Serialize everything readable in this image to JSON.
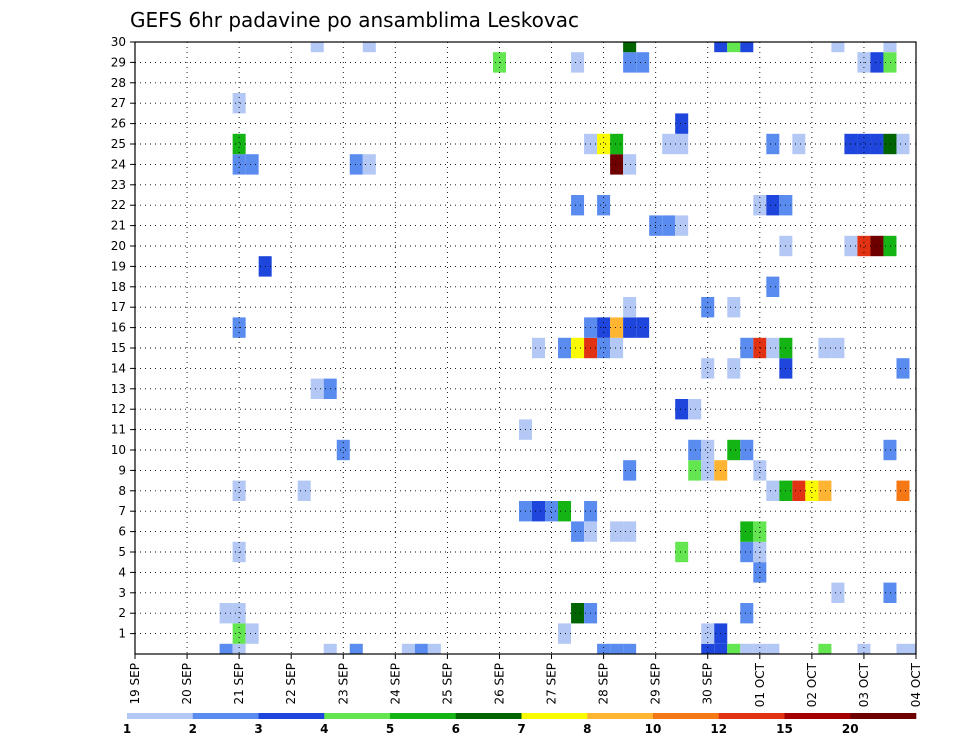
{
  "chart_data": {
    "type": "heatmap",
    "title": "GEFS 6hr padavine po ansamblima Leskovac",
    "xlabel": "",
    "ylabel": "",
    "x_ticks": [
      "19 SEP",
      "20 SEP",
      "21 SEP",
      "22 SEP",
      "23 SEP",
      "24 SEP",
      "25 SEP",
      "26 SEP",
      "27 SEP",
      "28 SEP",
      "29 SEP",
      "30 SEP",
      "01 OCT",
      "02 OCT",
      "03 OCT",
      "04 OCT"
    ],
    "x_range_steps": [
      0,
      60
    ],
    "y_ticks": [
      1,
      2,
      3,
      4,
      5,
      6,
      7,
      8,
      9,
      10,
      11,
      12,
      13,
      14,
      15,
      16,
      17,
      18,
      19,
      20,
      21,
      22,
      23,
      24,
      25,
      26,
      27,
      28,
      29,
      30
    ],
    "y_range": [
      0,
      30
    ],
    "grid": "dotted",
    "colorbar": {
      "colors": [
        "#b4c8f5",
        "#5a8cf0",
        "#1e46dc",
        "#64e650",
        "#14b414",
        "#006400",
        "#fafa00",
        "#ffb432",
        "#f57814",
        "#e13214",
        "#a50000",
        "#6e0000"
      ],
      "labels": [
        "1",
        "2",
        "3",
        "4",
        "5",
        "6",
        "7",
        "8",
        "10",
        "12",
        "15",
        "20"
      ]
    },
    "cells": [
      [
        7,
        0,
        1
      ],
      [
        8,
        0,
        0
      ],
      [
        15,
        0,
        0
      ],
      [
        17,
        0,
        1
      ],
      [
        21,
        0,
        0
      ],
      [
        22,
        0,
        1
      ],
      [
        23,
        0,
        0
      ],
      [
        36,
        0,
        1
      ],
      [
        37,
        0,
        1
      ],
      [
        38,
        0,
        1
      ],
      [
        44,
        0,
        2
      ],
      [
        45,
        0,
        2
      ],
      [
        46,
        0,
        3
      ],
      [
        47,
        0,
        0
      ],
      [
        48,
        0,
        0
      ],
      [
        49,
        0,
        0
      ],
      [
        53,
        0,
        3
      ],
      [
        56,
        0,
        0
      ],
      [
        59,
        0,
        0
      ],
      [
        60,
        0,
        0
      ],
      [
        8,
        1,
        3
      ],
      [
        9,
        1,
        0
      ],
      [
        33,
        1,
        0
      ],
      [
        44,
        1,
        0
      ],
      [
        45,
        1,
        2
      ],
      [
        7,
        2,
        0
      ],
      [
        8,
        2,
        0
      ],
      [
        34,
        2,
        5
      ],
      [
        35,
        2,
        1
      ],
      [
        47,
        2,
        1
      ],
      [
        54,
        3,
        0
      ],
      [
        58,
        3,
        1
      ],
      [
        48,
        4,
        1
      ],
      [
        8,
        5,
        0
      ],
      [
        42,
        5,
        3
      ],
      [
        47,
        5,
        1
      ],
      [
        48,
        5,
        0
      ],
      [
        34,
        6,
        1
      ],
      [
        35,
        6,
        0
      ],
      [
        37,
        6,
        0
      ],
      [
        38,
        6,
        0
      ],
      [
        47,
        6,
        4
      ],
      [
        48,
        6,
        3
      ],
      [
        30,
        7,
        1
      ],
      [
        31,
        7,
        2
      ],
      [
        32,
        7,
        1
      ],
      [
        33,
        7,
        4
      ],
      [
        35,
        7,
        1
      ],
      [
        8,
        8,
        0
      ],
      [
        13,
        8,
        0
      ],
      [
        49,
        8,
        0
      ],
      [
        50,
        8,
        4
      ],
      [
        51,
        8,
        9
      ],
      [
        52,
        8,
        6
      ],
      [
        53,
        8,
        7
      ],
      [
        59,
        8,
        8
      ],
      [
        38,
        9,
        1
      ],
      [
        43,
        9,
        3
      ],
      [
        44,
        9,
        0
      ],
      [
        45,
        9,
        7
      ],
      [
        48,
        9,
        0
      ],
      [
        16,
        10,
        1
      ],
      [
        43,
        10,
        1
      ],
      [
        44,
        10,
        0
      ],
      [
        46,
        10,
        4
      ],
      [
        47,
        10,
        1
      ],
      [
        58,
        10,
        1
      ],
      [
        30,
        11,
        0
      ],
      [
        42,
        12,
        2
      ],
      [
        43,
        12,
        0
      ],
      [
        14,
        13,
        0
      ],
      [
        15,
        13,
        1
      ],
      [
        44,
        14,
        0
      ],
      [
        46,
        14,
        0
      ],
      [
        50,
        14,
        2
      ],
      [
        59,
        14,
        1
      ],
      [
        31,
        15,
        0
      ],
      [
        33,
        15,
        1
      ],
      [
        34,
        15,
        6
      ],
      [
        35,
        15,
        9
      ],
      [
        36,
        15,
        1
      ],
      [
        37,
        15,
        0
      ],
      [
        47,
        15,
        1
      ],
      [
        48,
        15,
        9
      ],
      [
        49,
        15,
        0
      ],
      [
        50,
        15,
        4
      ],
      [
        53,
        15,
        0
      ],
      [
        54,
        15,
        0
      ],
      [
        8,
        16,
        1
      ],
      [
        35,
        16,
        1
      ],
      [
        36,
        16,
        2
      ],
      [
        37,
        16,
        7
      ],
      [
        38,
        16,
        2
      ],
      [
        39,
        16,
        2
      ],
      [
        38,
        17,
        0
      ],
      [
        44,
        17,
        1
      ],
      [
        46,
        17,
        0
      ],
      [
        49,
        18,
        1
      ],
      [
        10,
        19,
        2
      ],
      [
        50,
        20,
        0
      ],
      [
        55,
        20,
        0
      ],
      [
        56,
        20,
        9
      ],
      [
        57,
        20,
        11
      ],
      [
        58,
        20,
        4
      ],
      [
        40,
        21,
        1
      ],
      [
        41,
        21,
        1
      ],
      [
        42,
        21,
        0
      ],
      [
        34,
        22,
        1
      ],
      [
        36,
        22,
        1
      ],
      [
        48,
        22,
        0
      ],
      [
        49,
        22,
        2
      ],
      [
        50,
        22,
        1
      ],
      [
        8,
        24,
        1
      ],
      [
        9,
        24,
        1
      ],
      [
        17,
        24,
        1
      ],
      [
        18,
        24,
        0
      ],
      [
        37,
        24,
        11
      ],
      [
        38,
        24,
        0
      ],
      [
        8,
        25,
        4
      ],
      [
        35,
        25,
        0
      ],
      [
        36,
        25,
        6
      ],
      [
        37,
        25,
        4
      ],
      [
        41,
        25,
        0
      ],
      [
        42,
        25,
        0
      ],
      [
        49,
        25,
        1
      ],
      [
        51,
        25,
        0
      ],
      [
        55,
        25,
        2
      ],
      [
        56,
        25,
        2
      ],
      [
        57,
        25,
        2
      ],
      [
        58,
        25,
        5
      ],
      [
        59,
        25,
        0
      ],
      [
        42,
        26,
        2
      ],
      [
        8,
        27,
        0
      ],
      [
        28,
        29,
        3
      ],
      [
        34,
        29,
        0
      ],
      [
        38,
        29,
        1
      ],
      [
        39,
        29,
        1
      ],
      [
        56,
        29,
        0
      ],
      [
        57,
        29,
        2
      ],
      [
        58,
        29,
        3
      ],
      [
        14,
        30,
        0
      ],
      [
        18,
        30,
        0
      ],
      [
        38,
        30,
        5
      ],
      [
        45,
        30,
        2
      ],
      [
        46,
        30,
        3
      ],
      [
        47,
        30,
        2
      ],
      [
        54,
        30,
        0
      ],
      [
        58,
        30,
        0
      ]
    ]
  }
}
